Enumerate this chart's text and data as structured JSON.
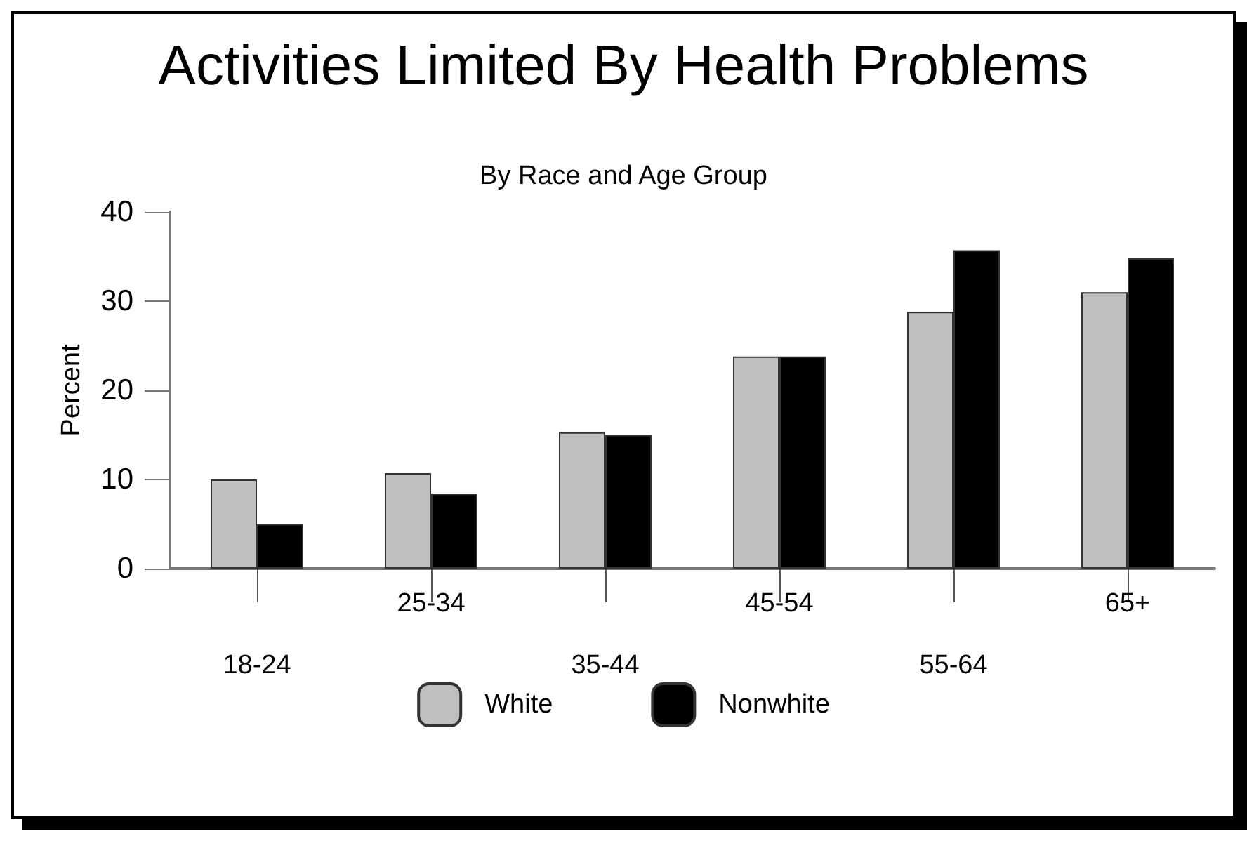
{
  "chart_data": {
    "type": "bar",
    "title": "Activities Limited By Health Problems",
    "subtitle": "By Race and Age Group",
    "ylabel": "Percent",
    "categories": [
      "18-24",
      "25-34",
      "35-44",
      "45-54",
      "55-64",
      "65+"
    ],
    "series": [
      {
        "name": "White",
        "color": "#c0c0c0",
        "values": [
          10,
          10.7,
          15.3,
          23.8,
          28.8,
          31.0
        ]
      },
      {
        "name": "Nonwhite",
        "color": "#000000",
        "values": [
          5.0,
          8.4,
          15.0,
          23.8,
          35.7,
          34.8
        ]
      }
    ],
    "ylim": [
      0,
      40
    ],
    "yticks": [
      0,
      10,
      20,
      30,
      40
    ],
    "grid": false,
    "legend": "bottom"
  }
}
